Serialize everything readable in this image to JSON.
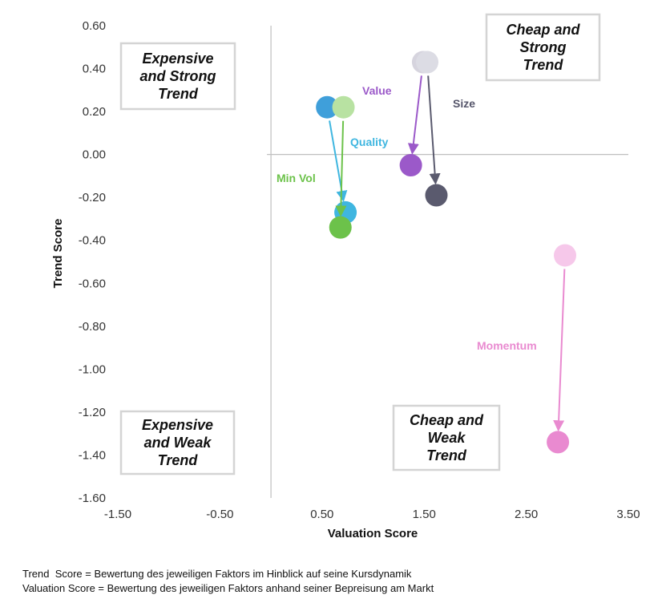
{
  "chart_data": {
    "type": "scatter",
    "xlabel": "Valuation Score",
    "ylabel": "Trend Score",
    "xlim": [
      -1.5,
      3.5
    ],
    "ylim": [
      -1.6,
      0.6
    ],
    "x_ticks": [
      "-1.50",
      "-0.50",
      "0.50",
      "1.50",
      "2.50",
      "3.50"
    ],
    "y_ticks": [
      "0.60",
      "0.40",
      "0.20",
      "0.00",
      "-0.20",
      "-0.40",
      "-0.60",
      "-0.80",
      "-1.00",
      "-1.20",
      "-1.40",
      "-1.60"
    ],
    "grid": false,
    "quadrants": [
      {
        "position": "top-left",
        "text": [
          "Expensive",
          "and Strong",
          "Trend"
        ]
      },
      {
        "position": "top-right",
        "text": [
          "Cheap and",
          "Strong",
          "Trend"
        ]
      },
      {
        "position": "bottom-left",
        "text": [
          "Expensive",
          "and Weak",
          "Trend"
        ]
      },
      {
        "position": "bottom-right",
        "text": [
          "Cheap and",
          "Weak",
          "Trend"
        ]
      }
    ],
    "series": [
      {
        "name": "Value",
        "color": "#9b59c9",
        "from_color": "#d6d4de",
        "start": [
          1.49,
          0.43
        ],
        "end": [
          1.37,
          -0.05
        ]
      },
      {
        "name": "Size",
        "color": "#5a5a6e",
        "from_color": "#dcdce4",
        "start": [
          1.53,
          0.43
        ],
        "end": [
          1.62,
          -0.19
        ]
      },
      {
        "name": "Quality",
        "color": "#3fb6e0",
        "from_color": "#3f9fda",
        "start": [
          0.55,
          0.22
        ],
        "end": [
          0.73,
          -0.27
        ]
      },
      {
        "name": "Min Vol",
        "color": "#6cc24a",
        "from_color": "#b8e2a2",
        "start": [
          0.71,
          0.22
        ],
        "end": [
          0.68,
          -0.34
        ]
      },
      {
        "name": "Momentum",
        "color": "#e98ad0",
        "from_color": "#f6c8ea",
        "start": [
          2.88,
          -0.47
        ],
        "end": [
          2.81,
          -1.34
        ]
      }
    ]
  },
  "footnotes": [
    "Trend  Score = Bewertung des jeweiligen Faktors im Hinblick auf seine Kursdynamik",
    "Valuation Score = Bewertung des jeweiligen Faktors anhand seiner Bepreisung am Markt"
  ]
}
